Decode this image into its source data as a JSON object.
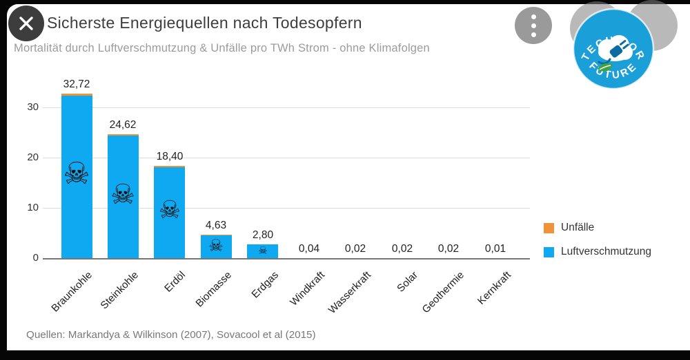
{
  "chart_data": {
    "type": "bar",
    "stacked": true,
    "title": "Sicherste Energiequellen nach Todesopfern",
    "subtitle": "Mortalität durch Luftverschmutzung & Unfälle pro TWh Strom - ohne Klimafolgen",
    "source": "Quellen: Markandya & Wilkinson (2007), Sovacool et al (2015)",
    "categories": [
      "Braunkohle",
      "Steinkohle",
      "Erdöl",
      "Biomasse",
      "Erdgas",
      "Windkraft",
      "Wasserkraft",
      "Solar",
      "Geothermie",
      "Kernkraft"
    ],
    "series": [
      {
        "name": "Unfälle",
        "color": "#ef9339",
        "values": [
          0.35,
          0.3,
          0.25,
          0.08,
          0.05,
          0,
          0,
          0,
          0,
          0
        ]
      },
      {
        "name": "Luftverschmutzung",
        "color": "#0fa9f1",
        "values": [
          32.37,
          24.32,
          18.15,
          4.55,
          2.75,
          0.04,
          0.02,
          0.02,
          0.02,
          0.01
        ]
      }
    ],
    "totals": [
      32.72,
      24.62,
      18.4,
      4.63,
      2.8,
      0.04,
      0.02,
      0.02,
      0.02,
      0.01
    ],
    "total_labels": [
      "32,72",
      "24,62",
      "18,40",
      "4,63",
      "2,80",
      "0,04",
      "0,02",
      "0,02",
      "0,02",
      "0,01"
    ],
    "y_ticks": [
      0,
      10,
      20,
      30
    ],
    "ylim": [
      0,
      36
    ],
    "xlabel": "",
    "ylabel": "",
    "grid": true,
    "legend_position": "right",
    "skull_sizes": [
      44,
      40,
      36,
      24,
      15,
      0,
      0,
      0,
      0,
      0
    ]
  },
  "icons": {
    "skull": "☠",
    "close": "x-cross",
    "menu": "vertical-ellipsis"
  },
  "logo": {
    "top": "TECH FOR",
    "bottom": "FUTURE"
  },
  "colors": {
    "accident": "#ef9339",
    "pollution": "#0fa9f1",
    "logo_blue": "#1b9fd8",
    "leaf_green": "#3fa33f"
  }
}
